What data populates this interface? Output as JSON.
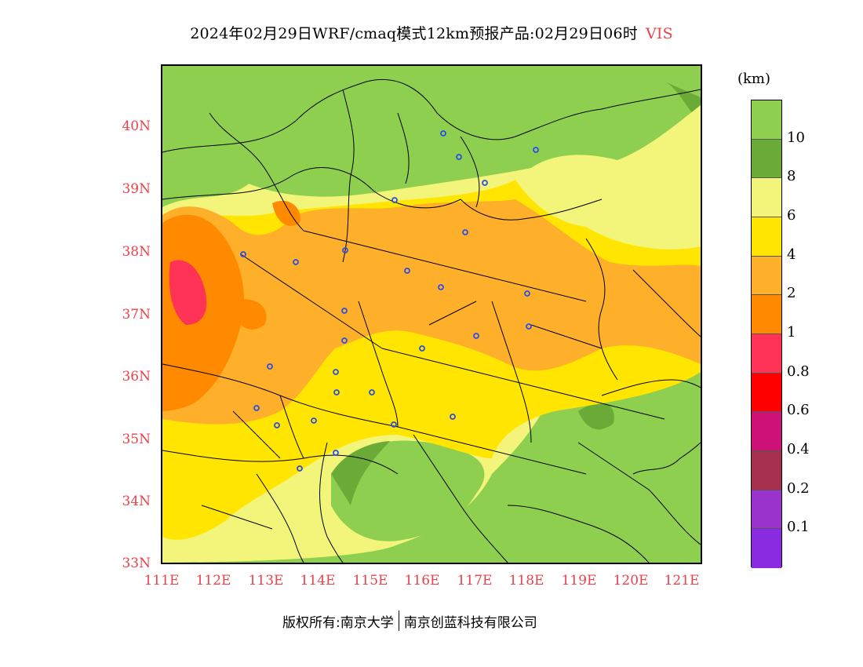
{
  "header": {
    "title": "2024年02月29日WRF/cmaq模式12km预报产品:02月29日06时",
    "variable": "VIS"
  },
  "map": {
    "lat_labels": [
      "40N",
      "39N",
      "38N",
      "37N",
      "36N",
      "35N",
      "34N",
      "33N"
    ],
    "lon_labels": [
      "111E",
      "112E",
      "113E",
      "114E",
      "115E",
      "116E",
      "117E",
      "118E",
      "119E",
      "120E",
      "121E"
    ],
    "label_color": "#e8424b"
  },
  "legend": {
    "unit": "(km)",
    "levels": [
      {
        "color": "#8fcf4f",
        "label": "10"
      },
      {
        "color": "#6aab37",
        "label": "8"
      },
      {
        "color": "#f2f57a",
        "label": "6"
      },
      {
        "color": "#ffe500",
        "label": "4"
      },
      {
        "color": "#ffb02a",
        "label": "2"
      },
      {
        "color": "#ff8a00",
        "label": "1"
      },
      {
        "color": "#ff3355",
        "label": "0.8"
      },
      {
        "color": "#ff0000",
        "label": "0.6"
      },
      {
        "color": "#cc1177",
        "label": "0.4"
      },
      {
        "color": "#a8304f",
        "label": "0.2"
      },
      {
        "color": "#9933cc",
        "label": "0.1"
      },
      {
        "color": "#8a2be2",
        "label": ""
      }
    ]
  },
  "footer": {
    "copyright": "版权所有:南京大学",
    "company": "南京创蓝科技有限公司"
  }
}
